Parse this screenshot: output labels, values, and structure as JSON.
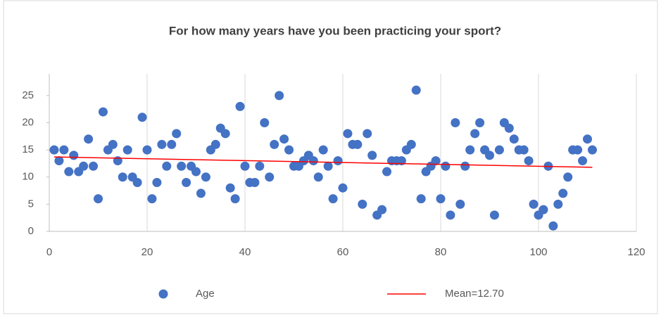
{
  "chart_data": {
    "type": "scatter",
    "title": "For how many years have you been practicing your sport?",
    "xlim": [
      0,
      120
    ],
    "xticks": [
      0,
      20,
      40,
      60,
      80,
      100,
      120
    ],
    "ylim": [
      0,
      29
    ],
    "yticks": [
      0,
      5,
      10,
      15,
      20,
      25
    ],
    "grid": true,
    "legend": "bottom",
    "series": [
      {
        "name": "Age",
        "type": "scatter",
        "color": "#4472c4",
        "x": [
          1,
          2,
          3,
          4,
          5,
          6,
          7,
          8,
          9,
          10,
          11,
          12,
          13,
          14,
          15,
          16,
          17,
          18,
          19,
          20,
          21,
          22,
          23,
          24,
          25,
          26,
          27,
          28,
          29,
          30,
          31,
          32,
          33,
          34,
          35,
          36,
          37,
          38,
          39,
          40,
          41,
          42,
          43,
          44,
          45,
          46,
          47,
          48,
          49,
          50,
          51,
          52,
          53,
          54,
          55,
          56,
          57,
          58,
          59,
          60,
          61,
          62,
          63,
          64,
          65,
          66,
          67,
          68,
          69,
          70,
          71,
          72,
          73,
          74,
          75,
          76,
          77,
          78,
          79,
          80,
          81,
          82,
          83,
          84,
          85,
          86,
          87,
          88,
          89,
          90,
          91,
          92,
          93,
          94,
          95,
          96,
          97,
          98,
          99,
          100,
          101,
          102,
          103,
          104,
          105,
          106,
          107,
          108,
          109,
          110,
          111
        ],
        "values": [
          15,
          13,
          15,
          11,
          14,
          11,
          12,
          17,
          12,
          6,
          22,
          15,
          16,
          13,
          10,
          15,
          10,
          9,
          21,
          15,
          6,
          9,
          16,
          12,
          16,
          18,
          12,
          9,
          12,
          11,
          7,
          10,
          15,
          16,
          19,
          18,
          8,
          6,
          23,
          12,
          9,
          9,
          12,
          20,
          10,
          16,
          25,
          17,
          15,
          12,
          12,
          13,
          14,
          13,
          10,
          15,
          12,
          6,
          13,
          8,
          18,
          16,
          16,
          5,
          18,
          14,
          3,
          4,
          11,
          13,
          13,
          13,
          15,
          16,
          26,
          6,
          11,
          12,
          13,
          6,
          12,
          3,
          20,
          5,
          12,
          15,
          18,
          20,
          15,
          14,
          3,
          15,
          20,
          19,
          17,
          15,
          15,
          13,
          5,
          3,
          4,
          12,
          1,
          5,
          7,
          10,
          15,
          15,
          13,
          17,
          15
        ]
      },
      {
        "name": "Mean=12.70",
        "type": "line",
        "color": "#ff0000",
        "x": [
          1,
          111
        ],
        "values": [
          13.7,
          11.8
        ]
      }
    ]
  }
}
